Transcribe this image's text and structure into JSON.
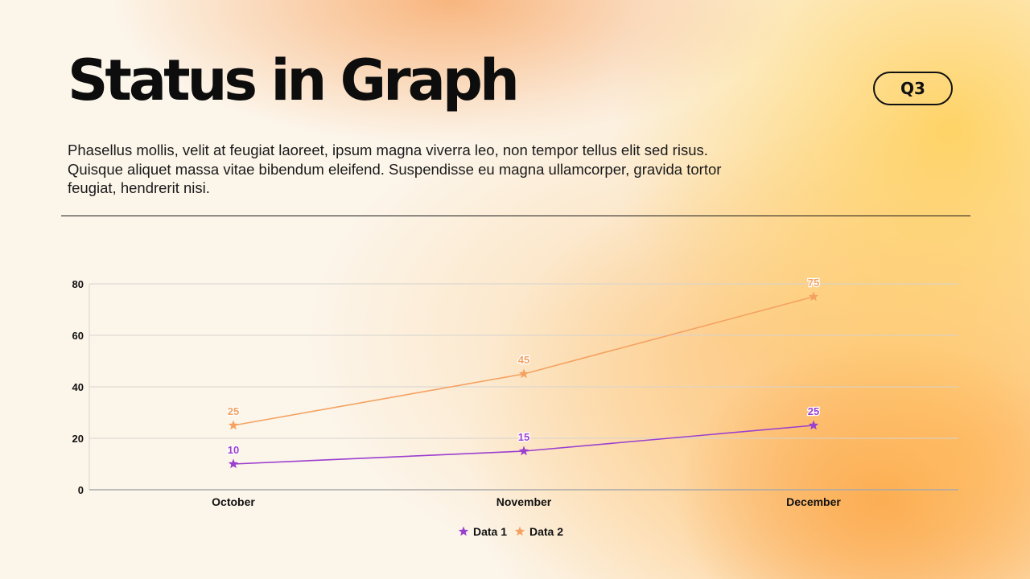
{
  "slide": {
    "title": "Status in Graph",
    "badge": "Q3",
    "body": "Phasellus mollis, velit at feugiat laoreet, ipsum magna viverra leo, non tempor tellus elit sed risus. Quisque aliquet massa vitae bibendum eleifend. Suspendisse eu magna ullamcorper, gravida tortor feugiat, hendrerit nisi."
  },
  "colors": {
    "data1": "#9b3fcf",
    "data2": "#f4a261",
    "grid": "#d6d3cf",
    "axis": "#a9a9a9",
    "text": "#111111"
  },
  "chart_data": {
    "type": "line",
    "categories": [
      "October",
      "November",
      "December"
    ],
    "series": [
      {
        "name": "Data 1",
        "values": [
          10,
          15,
          25
        ],
        "color": "#9b3fcf",
        "marker": "star"
      },
      {
        "name": "Data 2",
        "values": [
          25,
          45,
          75
        ],
        "color": "#f4a261",
        "marker": "star"
      }
    ],
    "yticks": [
      0,
      20,
      40,
      60,
      80
    ],
    "ylim": [
      0,
      80
    ],
    "grid": true,
    "data_labels": true,
    "legend": "bottom-center",
    "title": "",
    "xlabel": "",
    "ylabel": ""
  }
}
